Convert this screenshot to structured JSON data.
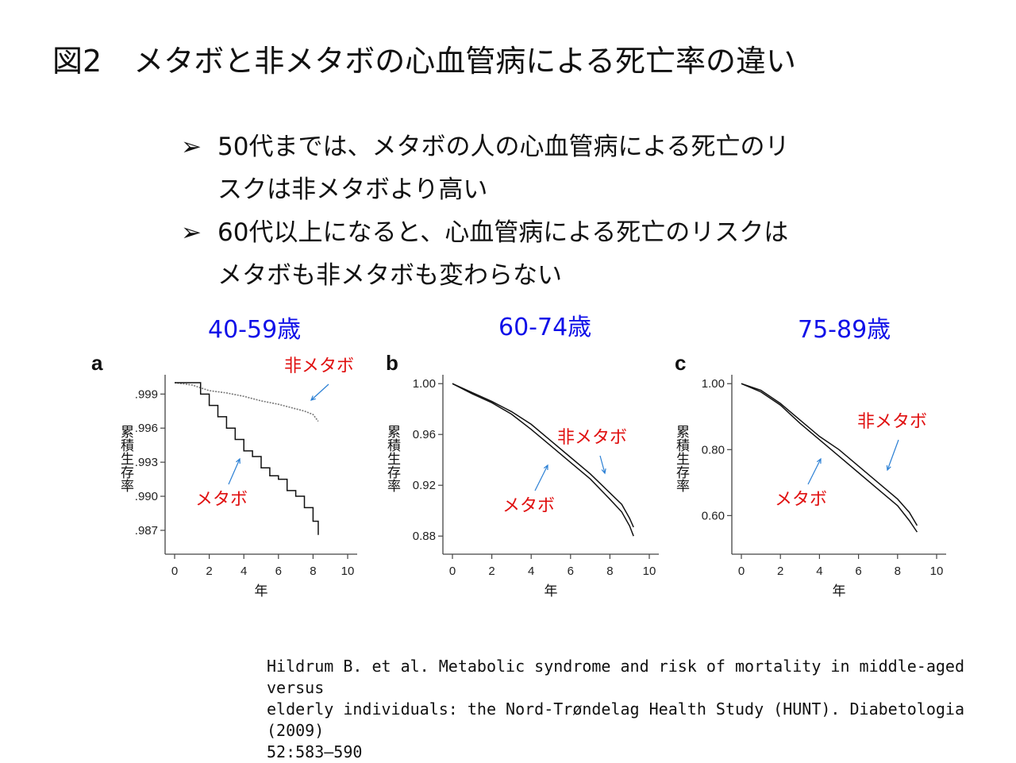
{
  "title": {
    "fig": "図2",
    "text": "メタボと非メタボの心血管病による死亡率の違い"
  },
  "bullets": [
    {
      "marker": "➢",
      "lines": [
        "50代までは、メタボの人の心血管病による死亡のリ",
        "スクは非メタボより高い"
      ]
    },
    {
      "marker": "➢",
      "lines": [
        "60代以上になると、心血管病による死亡のリスクは",
        "メタボも非メタボも変わらない"
      ]
    }
  ],
  "age_groups": [
    "40-59歳",
    "60-74歳",
    "75-89歳"
  ],
  "colors": {
    "annotation": "#e01010",
    "age": "#1010e8",
    "arrow": "#2a7fd4",
    "line": "#111111"
  },
  "chart_data": [
    {
      "type": "line",
      "panel": "a",
      "xlabel": "年",
      "ylabel": "累積生存率",
      "xlim": [
        0,
        10
      ],
      "ylim": [
        0.9856,
        1.0007
      ],
      "xticks": [
        0,
        2,
        4,
        6,
        8,
        10
      ],
      "yticks": [
        0.999,
        0.996,
        0.993,
        0.99,
        0.987
      ],
      "ytick_labels": [
        ".999",
        ".996",
        ".993",
        ".990",
        ".987"
      ],
      "series": [
        {
          "name": "非メタボ",
          "style": "dotted",
          "x": [
            0,
            1,
            2,
            3,
            4,
            5,
            6,
            7,
            7.5,
            8,
            8.3
          ],
          "y": [
            1.0,
            0.9998,
            0.9993,
            0.9991,
            0.9988,
            0.9984,
            0.9981,
            0.9977,
            0.9975,
            0.9972,
            0.9966
          ]
        },
        {
          "name": "メタボ",
          "style": "solid",
          "step": true,
          "x": [
            0,
            1.2,
            1.5,
            2.0,
            2.5,
            3.0,
            3.5,
            4.0,
            4.5,
            5.0,
            5.5,
            6.0,
            6.5,
            7.0,
            7.5,
            8.0,
            8.3
          ],
          "y": [
            1.0,
            1.0,
            0.999,
            0.998,
            0.997,
            0.996,
            0.995,
            0.994,
            0.9935,
            0.9925,
            0.9918,
            0.9915,
            0.9905,
            0.99,
            0.989,
            0.9878,
            0.9866
          ]
        }
      ],
      "annotations": [
        {
          "text": "非メタボ"
        },
        {
          "text": "メタボ"
        }
      ]
    },
    {
      "type": "line",
      "panel": "b",
      "xlabel": "年",
      "ylabel": "累積生存率",
      "xlim": [
        0,
        10
      ],
      "ylim": [
        0.872,
        1.007
      ],
      "xticks": [
        0,
        2,
        4,
        6,
        8,
        10
      ],
      "yticks": [
        1.0,
        0.96,
        0.92,
        0.88
      ],
      "ytick_labels": [
        "1.00",
        "0.96",
        "0.92",
        "0.88"
      ],
      "series": [
        {
          "name": "非メタボ",
          "style": "solid",
          "x": [
            0,
            1,
            2,
            3,
            4,
            5,
            6,
            7,
            8,
            8.6,
            9.0,
            9.2
          ],
          "y": [
            1.0,
            0.993,
            0.986,
            0.978,
            0.968,
            0.955,
            0.942,
            0.929,
            0.914,
            0.905,
            0.894,
            0.887
          ]
        },
        {
          "name": "メタボ",
          "style": "solid",
          "x": [
            0,
            1,
            2,
            3,
            4,
            5,
            6,
            7,
            8,
            8.6,
            9.0,
            9.2
          ],
          "y": [
            1.0,
            0.992,
            0.985,
            0.976,
            0.964,
            0.951,
            0.938,
            0.925,
            0.909,
            0.899,
            0.888,
            0.88
          ]
        }
      ],
      "annotations": [
        {
          "text": "非メタボ"
        },
        {
          "text": "メタボ"
        }
      ]
    },
    {
      "type": "line",
      "panel": "c",
      "xlabel": "年",
      "ylabel": "累積生存率",
      "xlim": [
        0,
        10
      ],
      "ylim": [
        0.507,
        1.027
      ],
      "xticks": [
        0,
        2,
        4,
        6,
        8,
        10
      ],
      "yticks": [
        1.0,
        0.8,
        0.6
      ],
      "ytick_labels": [
        "1.00",
        "0.80",
        "0.60"
      ],
      "series": [
        {
          "name": "非メタボ",
          "style": "solid",
          "x": [
            0,
            1,
            2,
            3,
            4,
            5,
            6,
            7,
            8,
            8.6,
            9.0
          ],
          "y": [
            1.0,
            0.98,
            0.94,
            0.89,
            0.84,
            0.8,
            0.75,
            0.7,
            0.65,
            0.61,
            0.57
          ]
        },
        {
          "name": "メタボ",
          "style": "solid",
          "x": [
            0,
            1,
            2,
            3,
            4,
            5,
            6,
            7,
            8,
            8.6,
            9.0
          ],
          "y": [
            1.0,
            0.975,
            0.935,
            0.88,
            0.83,
            0.78,
            0.73,
            0.68,
            0.63,
            0.585,
            0.55
          ]
        }
      ],
      "annotations": [
        {
          "text": "非メタボ"
        },
        {
          "text": "メタボ"
        }
      ]
    }
  ],
  "reference": [
    "Hildrum B. et al. Metabolic syndrome and risk of mortality in middle-aged versus",
    "elderly individuals: the Nord-Trøndelag Health Study (HUNT). Diabetologia (2009)",
    "52:583–590"
  ]
}
